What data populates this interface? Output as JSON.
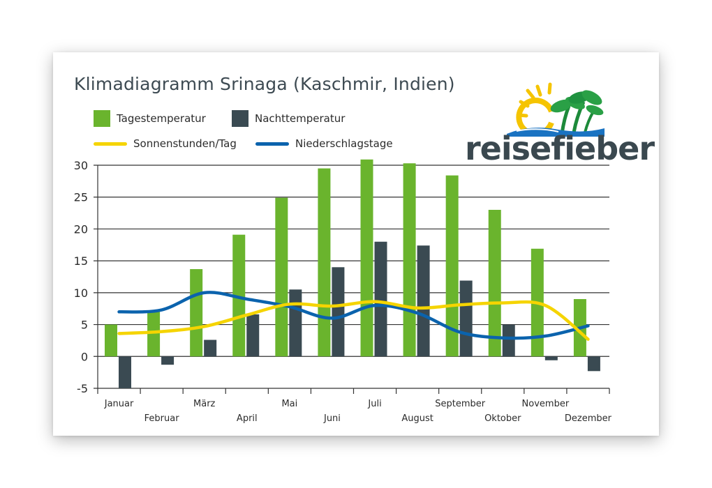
{
  "title": "Klimadiagramm Srinaga (Kaschmir, Indien)",
  "brand": {
    "name": "reisefieber"
  },
  "colors": {
    "day_temp": "#6ab42d",
    "night_temp": "#3a4a52",
    "sunshine": "#f5d400",
    "rain_days": "#0b63ad",
    "grid": "#333333",
    "text": "#2b2b2b"
  },
  "legend": [
    {
      "key": "day",
      "label": "Tagestemperatur"
    },
    {
      "key": "night",
      "label": "Nachttemperatur"
    },
    {
      "key": "sun",
      "label": "Sonnenstunden/Tag"
    },
    {
      "key": "rain",
      "label": "Niederschlagstage"
    }
  ],
  "chart_data": {
    "type": "bar",
    "title": "Klimadiagramm Srinaga (Kaschmir, Indien)",
    "categories": [
      "Januar",
      "Februar",
      "März",
      "April",
      "Mai",
      "Juni",
      "Juli",
      "August",
      "September",
      "Oktober",
      "November",
      "Dezember"
    ],
    "ylim": [
      -5,
      30
    ],
    "yticks": [
      30,
      25,
      20,
      15,
      10,
      5,
      0,
      -5
    ],
    "grid": true,
    "legend_position": "top-left",
    "series": [
      {
        "name": "Tagestemperatur",
        "type": "bar",
        "values": [
          5,
          7,
          13.7,
          19.1,
          24.9,
          29.5,
          30.9,
          30.3,
          28.4,
          23,
          16.9,
          9
        ]
      },
      {
        "name": "Nachttemperatur",
        "type": "bar",
        "values": [
          -5,
          -1.3,
          2.6,
          6.6,
          10.5,
          14,
          18,
          17.4,
          11.9,
          5,
          -0.6,
          -2.3
        ]
      },
      {
        "name": "Sonnenstunden/Tag",
        "type": "line",
        "values": [
          3.6,
          3.9,
          4.7,
          6.5,
          8.2,
          7.9,
          8.6,
          7.6,
          8.1,
          8.4,
          8,
          2.7
        ]
      },
      {
        "name": "Niederschlagstage",
        "type": "line",
        "values": [
          7,
          7.3,
          10,
          9,
          7.8,
          6,
          8,
          6.8,
          3.8,
          2.9,
          3.2,
          4.8
        ]
      }
    ]
  }
}
